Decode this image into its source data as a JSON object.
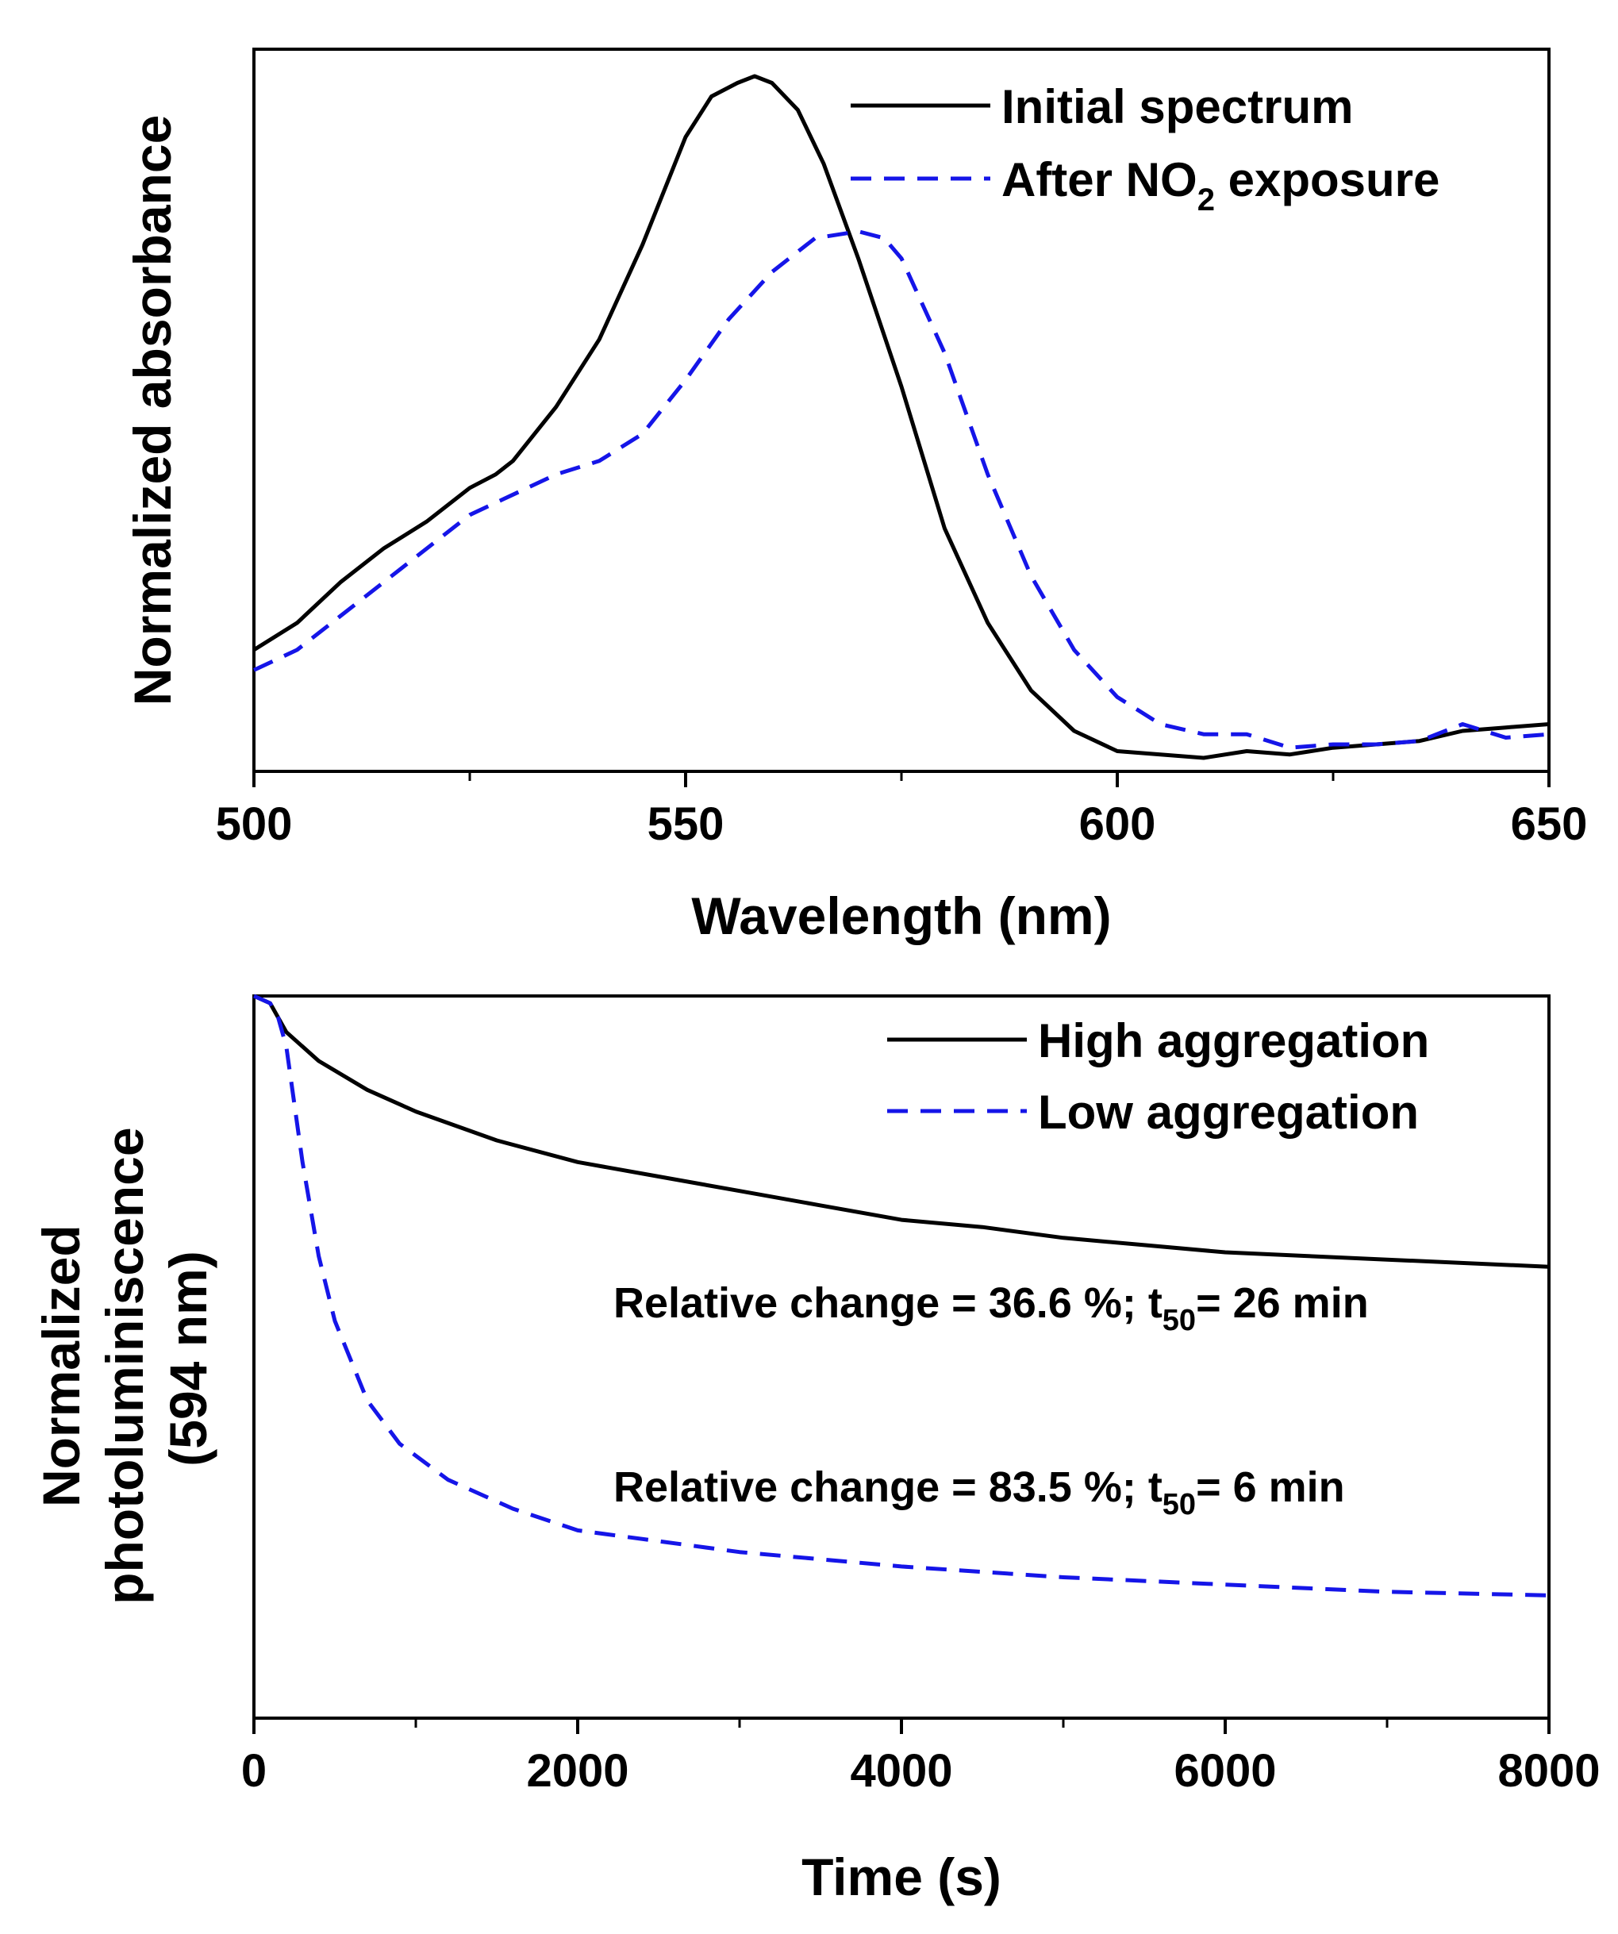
{
  "chart_data": [
    {
      "type": "line",
      "xlabel": "Wavelength (nm)",
      "ylabel": "Normalized absorbance",
      "xlim": [
        500,
        650
      ],
      "ylim": [
        -0.02,
        1.05
      ],
      "xticks": [
        500,
        550,
        600,
        650
      ],
      "xtick_labels": [
        "500",
        "550",
        "600",
        "650"
      ],
      "minor_xticks": [
        525,
        575,
        625
      ],
      "legend_position": "top-right",
      "series": [
        {
          "name": "Initial spectrum",
          "legend_label": "Initial spectrum",
          "color": "#000000",
          "style": "solid",
          "x": [
            500,
            505,
            510,
            515,
            520,
            525,
            528,
            530,
            535,
            540,
            545,
            550,
            553,
            556,
            558,
            560,
            563,
            566,
            570,
            575,
            580,
            585,
            590,
            595,
            600,
            605,
            610,
            615,
            620,
            625,
            630,
            635,
            640,
            645,
            650
          ],
          "y": [
            0.16,
            0.2,
            0.26,
            0.31,
            0.35,
            0.4,
            0.42,
            0.44,
            0.52,
            0.62,
            0.76,
            0.92,
            0.98,
            1.0,
            1.01,
            1.0,
            0.96,
            0.88,
            0.74,
            0.55,
            0.34,
            0.2,
            0.1,
            0.04,
            0.01,
            0.005,
            0.0,
            0.01,
            0.005,
            0.015,
            0.02,
            0.025,
            0.04,
            0.045,
            0.05
          ]
        },
        {
          "name": "After NO2 exposure",
          "legend_label": "After NO",
          "legend_subscript": "2",
          "legend_suffix": " exposure",
          "color": "#1515e8",
          "style": "dashed",
          "x": [
            500,
            505,
            510,
            515,
            520,
            525,
            530,
            535,
            540,
            545,
            550,
            555,
            560,
            565,
            570,
            573,
            575,
            580,
            585,
            590,
            595,
            600,
            605,
            610,
            615,
            620,
            625,
            630,
            635,
            640,
            645,
            650
          ],
          "y": [
            0.13,
            0.16,
            0.21,
            0.26,
            0.31,
            0.36,
            0.39,
            0.42,
            0.44,
            0.48,
            0.56,
            0.65,
            0.72,
            0.77,
            0.78,
            0.77,
            0.74,
            0.6,
            0.42,
            0.27,
            0.16,
            0.09,
            0.05,
            0.035,
            0.035,
            0.015,
            0.02,
            0.02,
            0.025,
            0.05,
            0.03,
            0.035
          ]
        }
      ]
    },
    {
      "type": "line",
      "xlabel": "Time (s)",
      "ylabel": [
        "Normalized",
        "photoluminiscence",
        "(594 nm)"
      ],
      "xlim": [
        0,
        8000
      ],
      "ylim": [
        0,
        1
      ],
      "xticks": [
        0,
        2000,
        4000,
        6000,
        8000
      ],
      "xtick_labels": [
        "0",
        "2000",
        "4000",
        "6000",
        "8000"
      ],
      "minor_xticks": [
        1000,
        3000,
        5000,
        7000
      ],
      "legend_position": "top-right",
      "series": [
        {
          "name": "High aggregation",
          "legend_label": "High aggregation",
          "color": "#000000",
          "style": "solid",
          "x": [
            0,
            100,
            200,
            400,
            700,
            1000,
            1500,
            2000,
            2500,
            3000,
            3500,
            4000,
            4500,
            5000,
            5500,
            6000,
            6500,
            7000,
            7500,
            8000
          ],
          "y": [
            1.0,
            0.99,
            0.95,
            0.91,
            0.87,
            0.84,
            0.8,
            0.77,
            0.75,
            0.73,
            0.71,
            0.69,
            0.68,
            0.665,
            0.655,
            0.645,
            0.64,
            0.635,
            0.63,
            0.625
          ]
        },
        {
          "name": "Low aggregation",
          "legend_label": "Low aggregation",
          "color": "#1515e8",
          "style": "dashed",
          "x": [
            0,
            100,
            150,
            200,
            300,
            400,
            500,
            700,
            900,
            1200,
            1600,
            2000,
            2500,
            3000,
            4000,
            5000,
            6000,
            7000,
            8000
          ],
          "y": [
            1.0,
            0.99,
            0.97,
            0.93,
            0.77,
            0.64,
            0.55,
            0.44,
            0.38,
            0.33,
            0.29,
            0.26,
            0.245,
            0.23,
            0.21,
            0.195,
            0.185,
            0.175,
            0.17
          ]
        }
      ],
      "annotations": [
        {
          "prefix": "Relative change = 36.6 %; t",
          "subscript": "50",
          "suffix": "= 26 min"
        },
        {
          "prefix": "Relative change = 83.5 %; t",
          "subscript": "50",
          "suffix": "= 6 min"
        }
      ]
    }
  ]
}
